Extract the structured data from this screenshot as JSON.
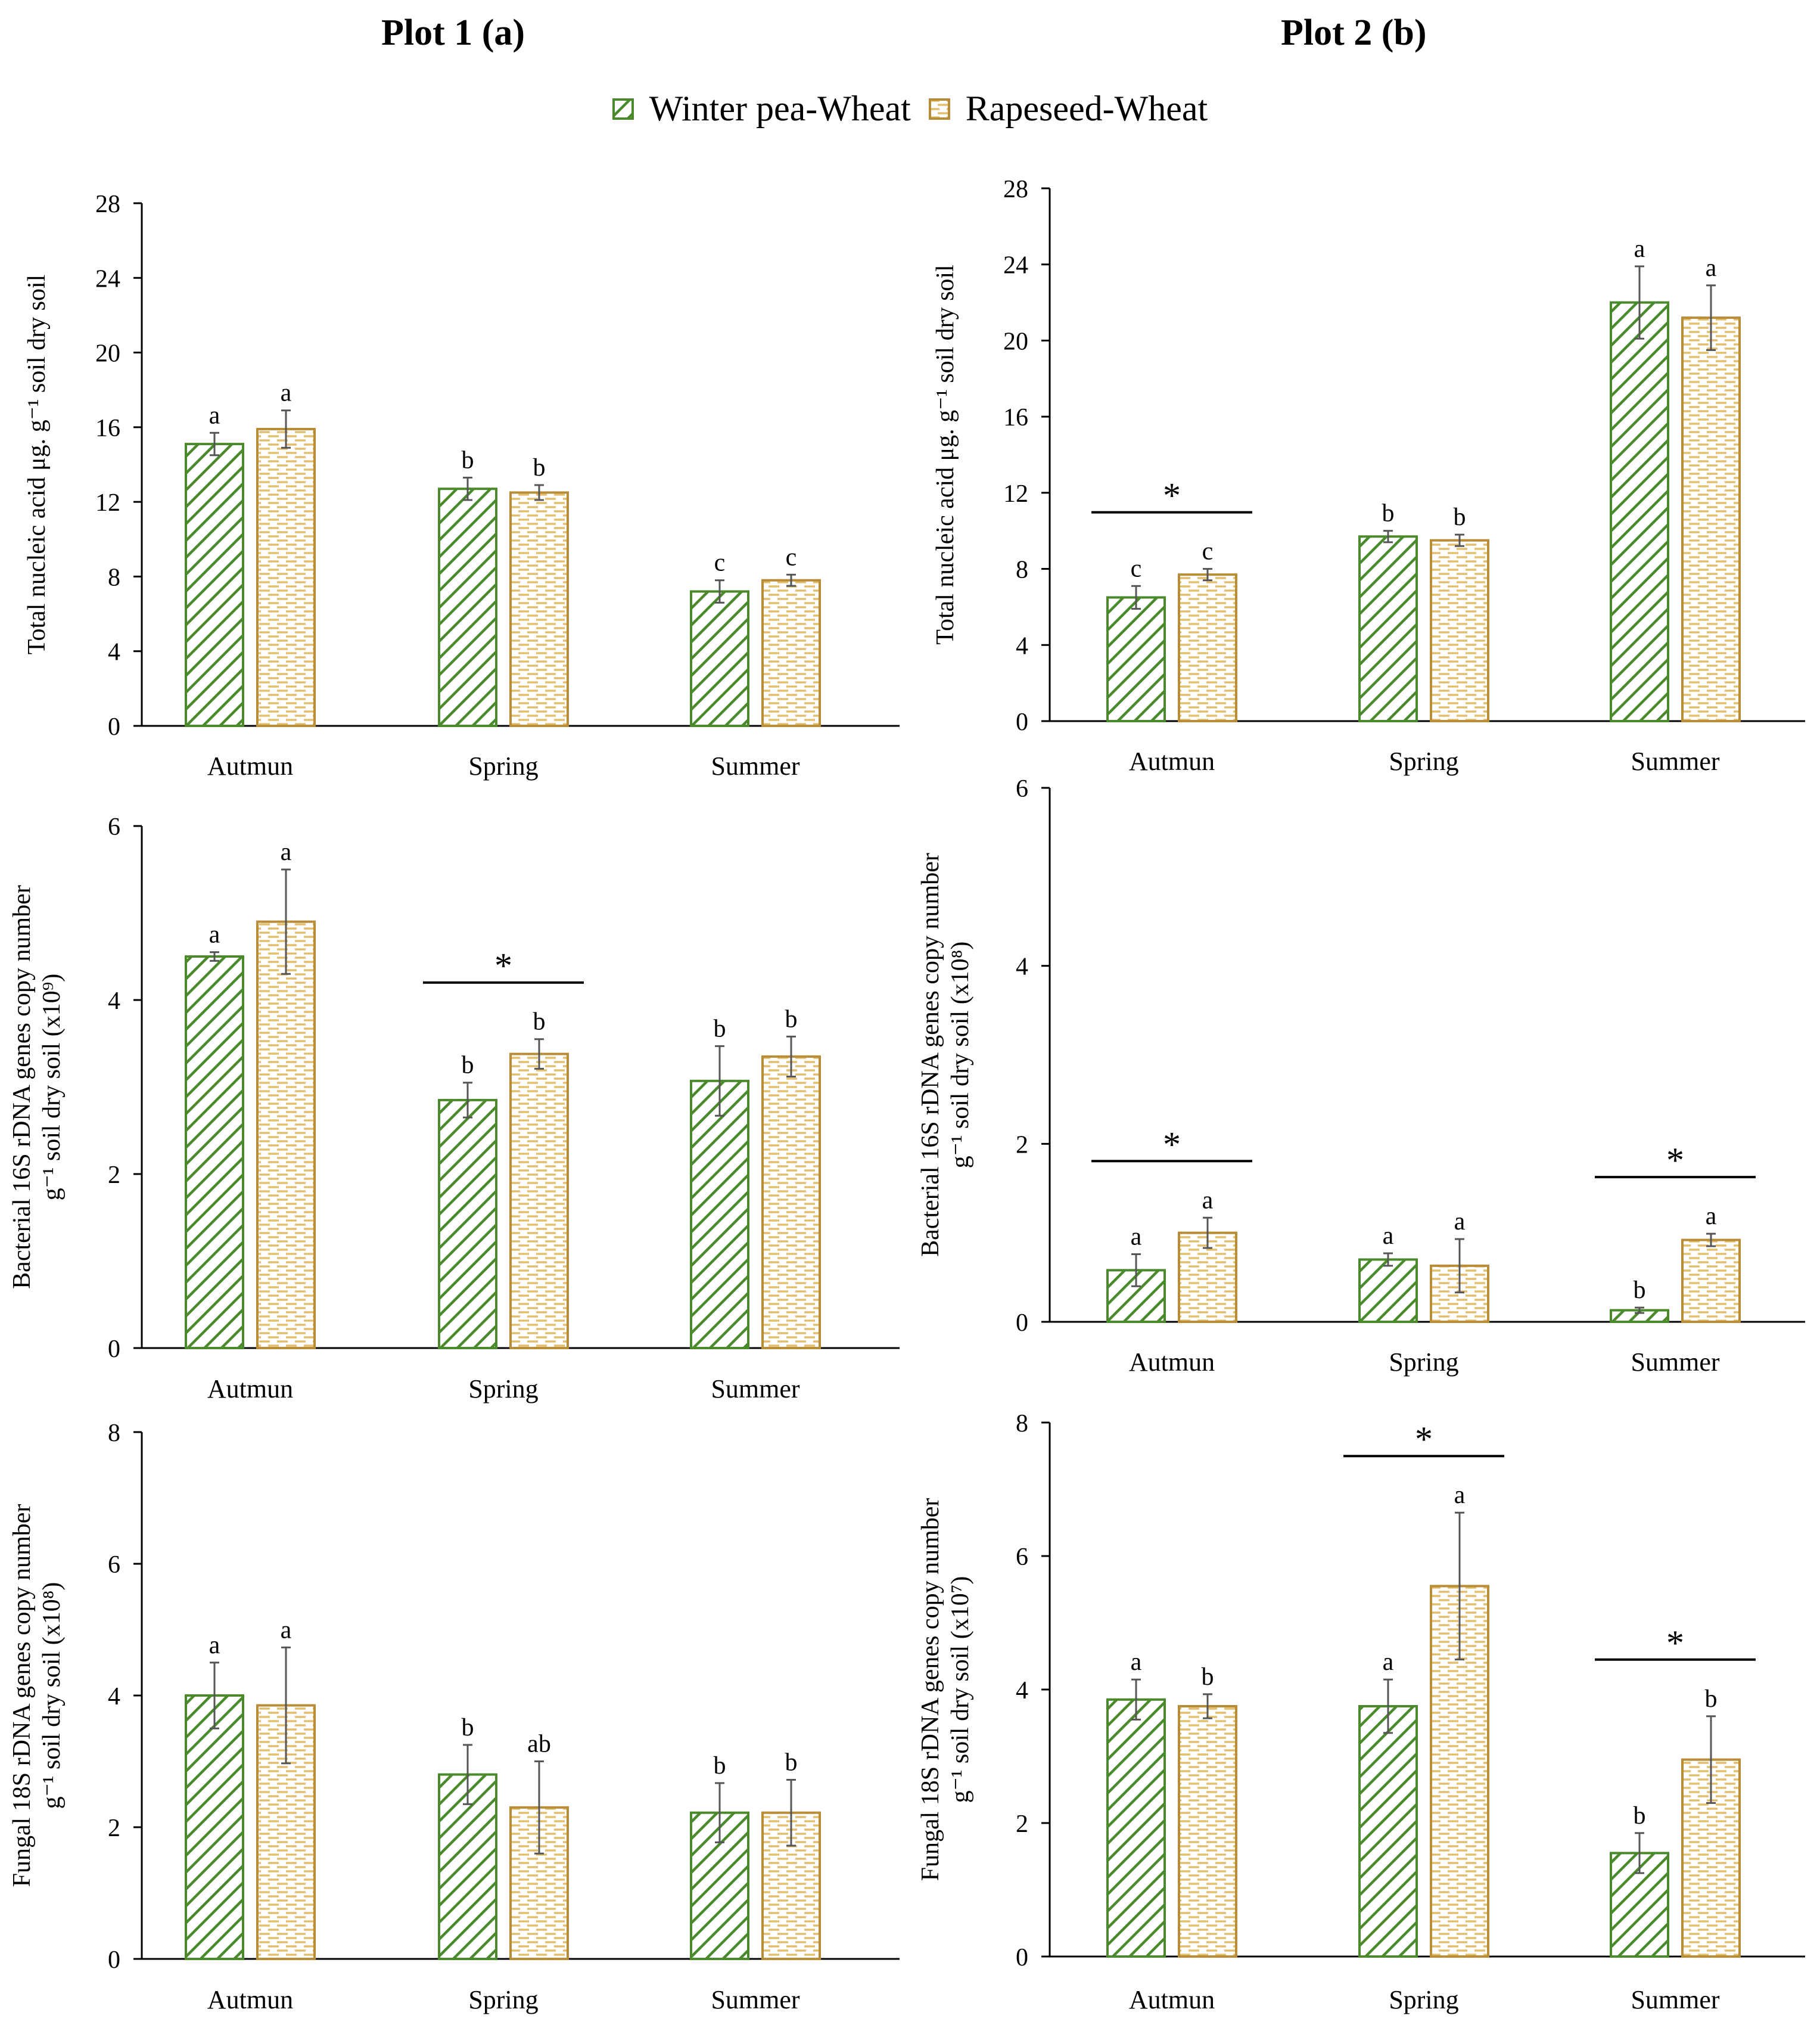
{
  "colors": {
    "winter_pea_wheat": "#4a8a2c",
    "rapeseed_wheat": "#b98d38"
  },
  "columns": [
    {
      "title": "Plot 1 (a)"
    },
    {
      "title": "Plot 2 (b)"
    }
  ],
  "legend": [
    {
      "label": "Winter pea-Wheat",
      "pattern": "diagonal",
      "color": "#4a8a2c"
    },
    {
      "label": "Rapeseed-Wheat",
      "pattern": "dashed-horizontal",
      "color": "#b98d38"
    }
  ],
  "chart_data": [
    {
      "id": "plot1-nucleic",
      "type": "bar",
      "ylabel_lines": [
        "Total nucleic acid μg. g⁻¹ soil dry soil"
      ],
      "ylim": [
        0,
        28
      ],
      "yticks": [
        0,
        4,
        8,
        12,
        16,
        20,
        24,
        28
      ],
      "categories": [
        "Autmun",
        "Spring",
        "Summer"
      ],
      "series": [
        {
          "name": "Winter pea-Wheat",
          "values": [
            15.1,
            12.7,
            7.2
          ],
          "errors": [
            0.6,
            0.6,
            0.6
          ],
          "letters": [
            "a",
            "b",
            "c"
          ]
        },
        {
          "name": "Rapeseed-Wheat",
          "values": [
            15.9,
            12.5,
            7.8
          ],
          "errors": [
            1.0,
            0.4,
            0.3
          ],
          "letters": [
            "a",
            "b",
            "c"
          ]
        }
      ],
      "significance": []
    },
    {
      "id": "plot2-nucleic",
      "type": "bar",
      "ylabel_lines": [
        "Total nucleic acid μg. g⁻¹ soil dry soil"
      ],
      "ylim": [
        0,
        28
      ],
      "yticks": [
        0,
        4,
        8,
        12,
        16,
        20,
        24,
        28
      ],
      "categories": [
        "Autmun",
        "Spring",
        "Summer"
      ],
      "series": [
        {
          "name": "Winter pea-Wheat",
          "values": [
            6.5,
            9.7,
            22.0
          ],
          "errors": [
            0.6,
            0.3,
            1.9
          ],
          "letters": [
            "c",
            "b",
            "a"
          ]
        },
        {
          "name": "Rapeseed-Wheat",
          "values": [
            7.7,
            9.5,
            21.2
          ],
          "errors": [
            0.3,
            0.3,
            1.7
          ],
          "letters": [
            "c",
            "b",
            "a"
          ]
        }
      ],
      "significance": [
        {
          "category_index": 0,
          "symbol": "*"
        }
      ]
    },
    {
      "id": "plot1-bacterial",
      "type": "bar",
      "ylabel_lines": [
        "Bacterial 16S rDNA genes copy number",
        "g⁻¹ soil dry soil (x10⁹)"
      ],
      "ylim": [
        0,
        6
      ],
      "yticks": [
        0,
        2,
        4,
        6
      ],
      "categories": [
        "Autmun",
        "Spring",
        "Summer"
      ],
      "series": [
        {
          "name": "Winter pea-Wheat",
          "values": [
            4.5,
            2.85,
            3.07
          ],
          "errors": [
            0.05,
            0.2,
            0.4
          ],
          "letters": [
            "a",
            "b",
            "b"
          ]
        },
        {
          "name": "Rapeseed-Wheat",
          "values": [
            4.9,
            3.38,
            3.35
          ],
          "errors": [
            0.6,
            0.17,
            0.23
          ],
          "letters": [
            "a",
            "b",
            "b"
          ]
        }
      ],
      "significance": [
        {
          "category_index": 1,
          "symbol": "*"
        }
      ]
    },
    {
      "id": "plot2-bacterial",
      "type": "bar",
      "ylabel_lines": [
        "Bacterial 16S rDNA genes copy number",
        "g⁻¹ soil dry soil (x10⁸)"
      ],
      "ylim": [
        0,
        6
      ],
      "yticks": [
        0,
        2,
        4,
        6
      ],
      "categories": [
        "Autmun",
        "Spring",
        "Summer"
      ],
      "series": [
        {
          "name": "Winter pea-Wheat",
          "values": [
            0.58,
            0.7,
            0.13
          ],
          "errors": [
            0.18,
            0.07,
            0.03
          ],
          "letters": [
            "a",
            "a",
            "b"
          ]
        },
        {
          "name": "Rapeseed-Wheat",
          "values": [
            1.0,
            0.63,
            0.92
          ],
          "errors": [
            0.17,
            0.3,
            0.07
          ],
          "letters": [
            "a",
            "a",
            "a"
          ]
        }
      ],
      "significance": [
        {
          "category_index": 0,
          "symbol": "*"
        },
        {
          "category_index": 2,
          "symbol": "*"
        }
      ]
    },
    {
      "id": "plot1-fungal",
      "type": "bar",
      "ylabel_lines": [
        "Fungal 18S rDNA genes copy number",
        "g⁻¹ soil dry soil (x10⁸)"
      ],
      "ylim": [
        0,
        8
      ],
      "yticks": [
        0,
        2,
        4,
        6,
        8
      ],
      "categories": [
        "Autmun",
        "Spring",
        "Summer"
      ],
      "series": [
        {
          "name": "Winter pea-Wheat",
          "values": [
            4.0,
            2.8,
            2.22
          ],
          "errors": [
            0.5,
            0.45,
            0.45
          ],
          "letters": [
            "a",
            "b",
            "b"
          ]
        },
        {
          "name": "Rapeseed-Wheat",
          "values": [
            3.85,
            2.3,
            2.22
          ],
          "errors": [
            0.88,
            0.7,
            0.5
          ],
          "letters": [
            "a",
            "ab",
            "b"
          ]
        }
      ],
      "significance": []
    },
    {
      "id": "plot2-fungal",
      "type": "bar",
      "ylabel_lines": [
        "Fungal 18S rDNA genes copy number",
        "g⁻¹ soil dry soil (x10⁷)"
      ],
      "ylim": [
        0,
        8
      ],
      "yticks": [
        0,
        2,
        4,
        6,
        8
      ],
      "categories": [
        "Autmun",
        "Spring",
        "Summer"
      ],
      "series": [
        {
          "name": "Winter pea-Wheat",
          "values": [
            3.85,
            3.75,
            1.55
          ],
          "errors": [
            0.3,
            0.4,
            0.3
          ],
          "letters": [
            "a",
            "a",
            "b"
          ]
        },
        {
          "name": "Rapeseed-Wheat",
          "values": [
            3.75,
            5.55,
            2.95
          ],
          "errors": [
            0.18,
            1.1,
            0.65
          ],
          "letters": [
            "b",
            "a",
            "b"
          ]
        }
      ],
      "significance": [
        {
          "category_index": 1,
          "symbol": "*"
        },
        {
          "category_index": 2,
          "symbol": "*"
        }
      ]
    }
  ]
}
